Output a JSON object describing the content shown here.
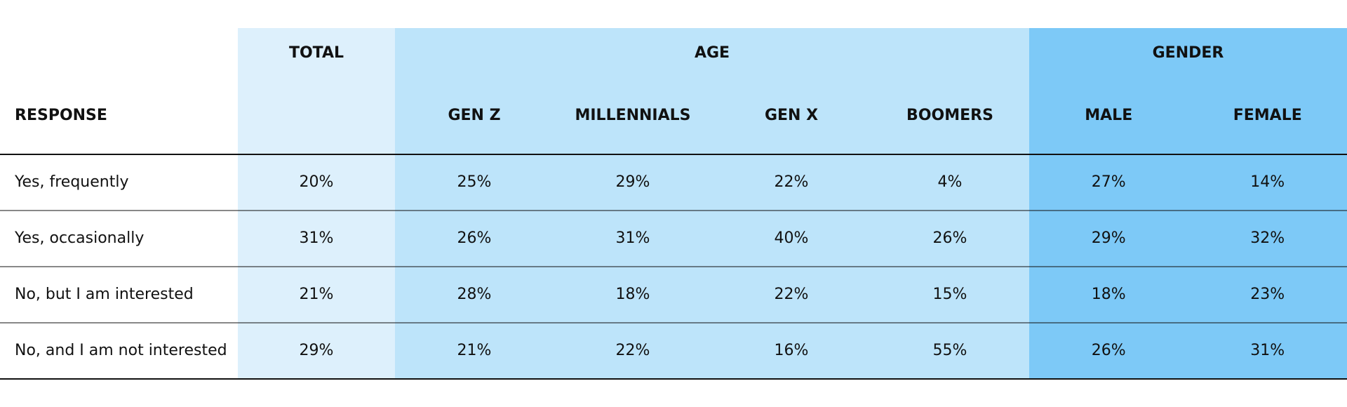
{
  "table": {
    "header": {
      "response": "RESPONSE",
      "groups": [
        {
          "label": "TOTAL",
          "columns": []
        },
        {
          "label": "AGE",
          "columns": [
            "GEN Z",
            "MILLENNIALS",
            "GEN X",
            "BOOMERS"
          ]
        },
        {
          "label": "GENDER",
          "columns": [
            "MALE",
            "FEMALE"
          ]
        }
      ]
    },
    "rows": [
      [
        "Yes, frequently",
        "20%",
        "25%",
        "29%",
        "22%",
        "4%",
        "27%",
        "14%"
      ],
      [
        "Yes, occasionally",
        "31%",
        "26%",
        "31%",
        "40%",
        "26%",
        "29%",
        "32%"
      ],
      [
        "No, but I am interested",
        "21%",
        "28%",
        "18%",
        "22%",
        "15%",
        "18%",
        "23%"
      ],
      [
        "No, and I am not interested",
        "29%",
        "21%",
        "22%",
        "16%",
        "55%",
        "26%",
        "31%"
      ]
    ]
  }
}
